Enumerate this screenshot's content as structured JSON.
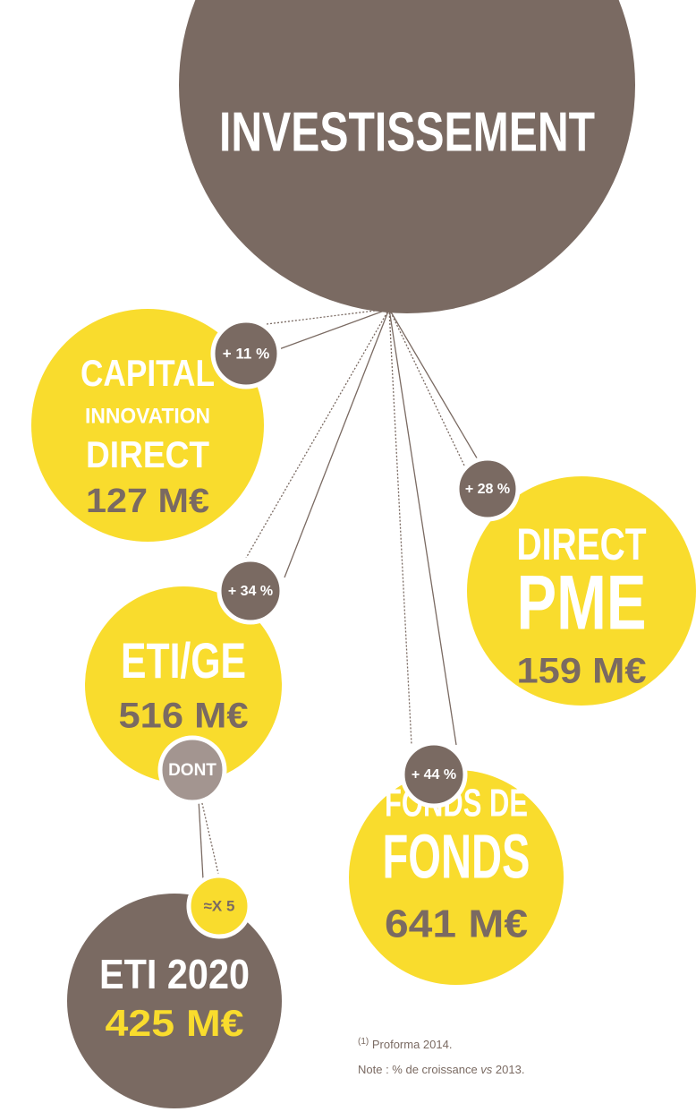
{
  "title": "INVESTISSEMENT",
  "nodes": [
    {
      "lines": [
        "CAPITAL",
        "INNOVATION",
        "DIRECT"
      ],
      "amount": "127 M€",
      "growth": "+ 11 %"
    },
    {
      "lines": [
        "DIRECT",
        "PME"
      ],
      "amount": "159 M€",
      "growth": "+ 28 %"
    },
    {
      "lines": [
        "ETI/GE"
      ],
      "amount": "516 M€",
      "growth": "+ 34 %"
    },
    {
      "lines": [
        "FONDS DE",
        "FONDS"
      ],
      "amount": "641 M€",
      "growth": "+ 44 %"
    }
  ],
  "sub": {
    "connector": "DONT",
    "growth": "≈X 5",
    "lines": [
      "ETI 2020"
    ],
    "amount": "425 M€"
  },
  "footnotes": [
    {
      "mark": "(1)",
      "text": " Proforma 2014."
    },
    {
      "parts": [
        "Note : % de croissance ",
        "vs",
        " 2013."
      ]
    }
  ]
}
